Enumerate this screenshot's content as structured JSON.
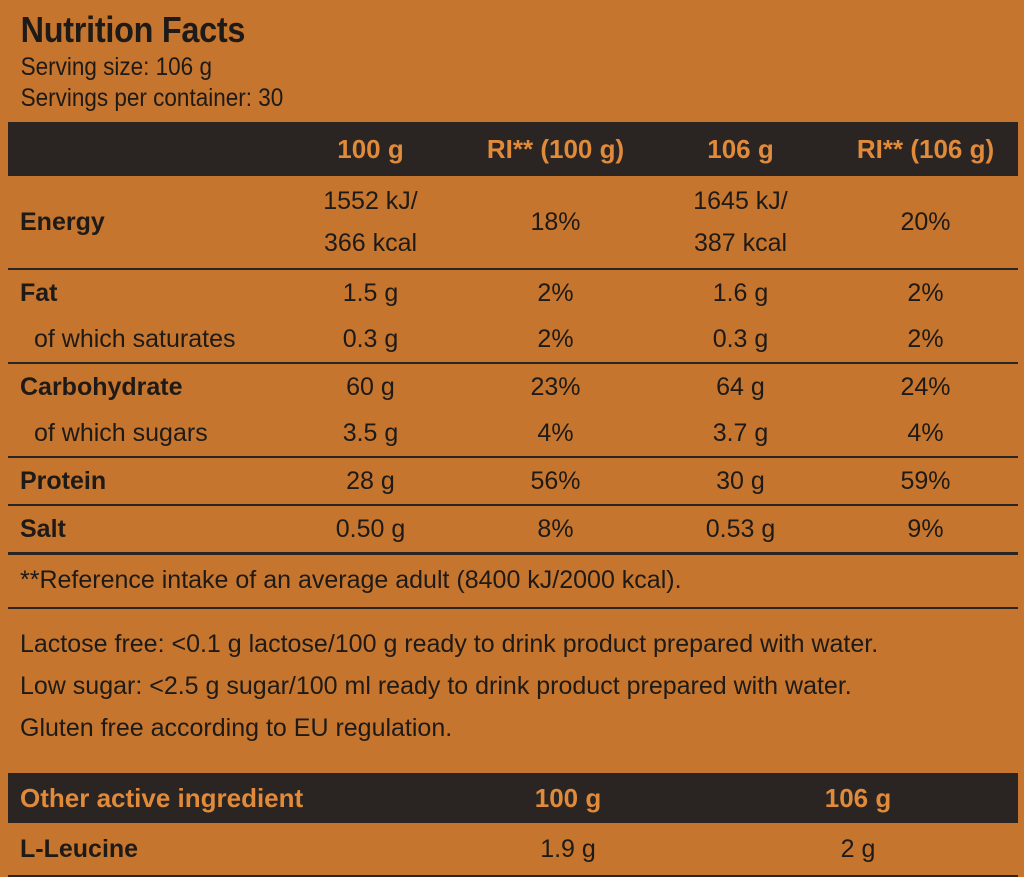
{
  "title": "Nutrition Facts",
  "serving_size": "Serving size: 106 g",
  "servings_per_container": "Servings per container: 30",
  "table": {
    "headers": [
      "",
      "100 g",
      "RI** (100 g)",
      "106 g",
      "RI** (106 g)"
    ],
    "energy": {
      "label": "Energy",
      "per100_kj": "1552 kJ/",
      "per100_kcal": "366 kcal",
      "ri100": "18%",
      "per106_kj": "1645 kJ/",
      "per106_kcal": "387 kcal",
      "ri106": "20%"
    },
    "rows": [
      {
        "label": "Fat",
        "per100": "1.5 g",
        "ri100": "2%",
        "per106": "1.6 g",
        "ri106": "2%"
      },
      {
        "label": "of which saturates",
        "per100": "0.3 g",
        "ri100": "2%",
        "per106": "0.3 g",
        "ri106": "2%"
      },
      {
        "label": "Carbohydrate",
        "per100": "60 g",
        "ri100": "23%",
        "per106": "64 g",
        "ri106": "24%"
      },
      {
        "label": "of which sugars",
        "per100": "3.5 g",
        "ri100": "4%",
        "per106": "3.7 g",
        "ri106": "4%"
      },
      {
        "label": "Protein",
        "per100": "28 g",
        "ri100": "56%",
        "per106": "30 g",
        "ri106": "59%"
      },
      {
        "label": "Salt",
        "per100": "0.50 g",
        "ri100": "8%",
        "per106": "0.53 g",
        "ri106": "9%"
      }
    ]
  },
  "footnote": "**Reference intake of an average adult (8400 kJ/2000 kcal).",
  "claims": [
    "Lactose free: <0.1 g lactose/100 g ready to drink product prepared with water.",
    "Low sugar: <2.5 g sugar/100 ml ready to drink product prepared with water.",
    "Gluten free according to EU regulation."
  ],
  "active": {
    "headers": [
      "Other active ingredient",
      "100 g",
      "106 g"
    ],
    "rows": [
      {
        "label": "L-Leucine",
        "per100": "1.9 g",
        "per106": "2 g"
      }
    ]
  },
  "colors": {
    "background": "#c5752d",
    "header_bg": "#2a2522",
    "header_text": "#e08a3a",
    "text": "#1e1a17"
  }
}
